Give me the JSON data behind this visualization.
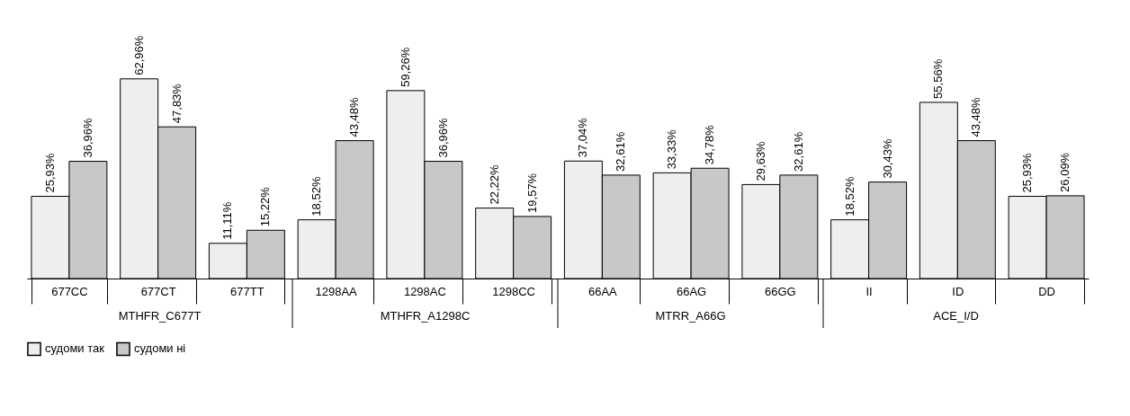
{
  "chart_data": {
    "type": "bar",
    "categories": [
      "677CC",
      "677CT",
      "677TT",
      "1298AA",
      "1298AC",
      "1298CC",
      "66AA",
      "66AG",
      "66GG",
      "II",
      "ID",
      "DD"
    ],
    "series": [
      {
        "name": "судоми так",
        "color": "#eeeeee",
        "values": [
          25.93,
          62.96,
          11.11,
          18.52,
          59.26,
          22.22,
          37.04,
          33.33,
          29.63,
          18.52,
          55.56,
          25.93
        ],
        "value_labels": [
          "25,93%",
          "62,96%",
          "11,11%",
          "18,52%",
          "59,26%",
          "22,22%",
          "37,04%",
          "33,33%",
          "29,63%",
          "18,52%",
          "55,56%",
          "25,93%"
        ]
      },
      {
        "name": "судоми ні",
        "color": "#c8c8c8",
        "values": [
          36.96,
          47.83,
          15.22,
          43.48,
          36.96,
          19.57,
          32.61,
          34.78,
          32.61,
          30.43,
          43.48,
          26.09
        ],
        "value_labels": [
          "36,96%",
          "47,83%",
          "15,22%",
          "43,48%",
          "36,96%",
          "19,57%",
          "32,61%",
          "34,78%",
          "32,61%",
          "30,43%",
          "43,48%",
          "26,09%"
        ]
      }
    ],
    "annotations": [
      "MTHFR_C677T",
      "MTHFR_A1298C",
      "MTRR_A66G",
      "ACE_I/D"
    ],
    "legend": "bottom"
  }
}
